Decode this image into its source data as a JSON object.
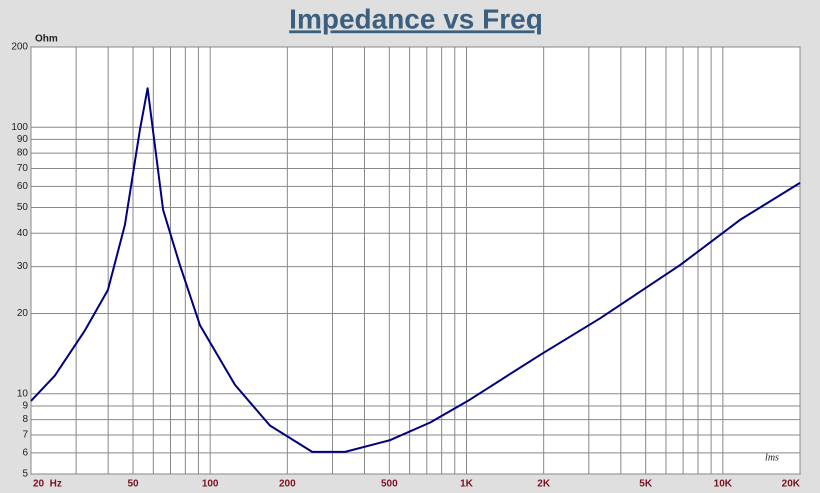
{
  "chart_data": {
    "type": "line",
    "title": "Impedance vs Freq",
    "y_label": "Ohm",
    "watermark": "lms",
    "x_log": true,
    "y_log": true,
    "grid": true,
    "color": "#000080",
    "x": [
      20,
      24.8,
      32.5,
      39.9,
      46.5,
      53.2,
      57,
      65.5,
      76.2,
      91.2,
      125,
      171,
      250,
      336,
      504,
      722,
      1030,
      1940,
      3320,
      6810,
      11670,
      20000
    ],
    "values": [
      9.4,
      11.7,
      17.3,
      24.5,
      43,
      97.7,
      140,
      49,
      30.4,
      18.1,
      10.8,
      7.6,
      6.05,
      6.05,
      6.7,
      7.8,
      9.5,
      14,
      19.2,
      30.4,
      44.9,
      61.8
    ],
    "xlim": [
      20,
      20000
    ],
    "ylim": [
      5,
      200
    ],
    "xticks": [
      {
        "value": 20,
        "label": "20  Hz"
      },
      50,
      100,
      200,
      500,
      {
        "value": 1000,
        "label": "1K"
      },
      {
        "value": 2000,
        "label": "2K"
      },
      {
        "value": 5000,
        "label": "5K"
      },
      {
        "value": 10000,
        "label": "10K"
      },
      {
        "value": 20000,
        "label": "20K"
      }
    ],
    "xgrid": [
      30,
      40,
      60,
      70,
      80,
      90,
      300,
      400,
      600,
      700,
      800,
      900,
      3000,
      4000,
      6000,
      7000,
      8000,
      9000
    ],
    "yticks": [
      5,
      6,
      7,
      8,
      9,
      10,
      20,
      30,
      40,
      50,
      60,
      70,
      80,
      90,
      100,
      200
    ]
  }
}
